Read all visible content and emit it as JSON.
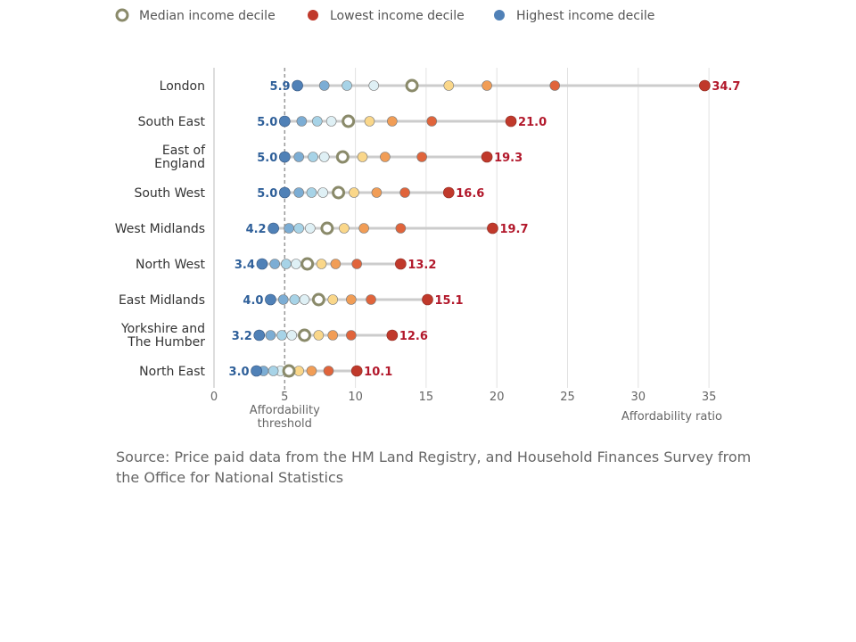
{
  "chart_data": {
    "type": "dot",
    "xlabel": "Affordability ratio",
    "threshold_label_line1": "Affordability",
    "threshold_label_line2": "threshold",
    "threshold": 5,
    "xlim": [
      0,
      35
    ],
    "xticks": [
      0,
      5,
      10,
      15,
      20,
      25,
      30,
      35
    ],
    "legend": [
      {
        "name": "Median income decile",
        "marker": "median"
      },
      {
        "name": "Lowest income decile",
        "marker": "lowest"
      },
      {
        "name": "Highest income decile",
        "marker": "highest"
      }
    ],
    "decile_colors": [
      "#c0392b",
      "#e0643b",
      "#f19d56",
      "#fad78a",
      "#8a8a6a",
      "#dff0f5",
      "#a7d3e7",
      "#7cadd4",
      "#5081b7"
    ],
    "regions": [
      {
        "name": "London",
        "lines": [
          "London"
        ],
        "highest_label": "5.9",
        "lowest_label": "34.7",
        "values": [
          34.7,
          24.1,
          19.3,
          16.6,
          14.0,
          11.3,
          9.4,
          7.8,
          5.9
        ]
      },
      {
        "name": "South East",
        "lines": [
          "South East"
        ],
        "highest_label": "5.0",
        "lowest_label": "21.0",
        "values": [
          21.0,
          15.4,
          12.6,
          11.0,
          9.5,
          8.3,
          7.3,
          6.2,
          5.0
        ]
      },
      {
        "name": "East of England",
        "lines": [
          "East of",
          "England"
        ],
        "highest_label": "5.0",
        "lowest_label": "19.3",
        "values": [
          19.3,
          14.7,
          12.1,
          10.5,
          9.1,
          7.8,
          7.0,
          6.0,
          5.0
        ]
      },
      {
        "name": "South West",
        "lines": [
          "South West"
        ],
        "highest_label": "5.0",
        "lowest_label": "16.6",
        "values": [
          16.6,
          13.5,
          11.5,
          9.9,
          8.8,
          7.7,
          6.9,
          6.0,
          5.0
        ]
      },
      {
        "name": "West Midlands",
        "lines": [
          "West Midlands"
        ],
        "highest_label": "4.2",
        "lowest_label": "19.7",
        "values": [
          19.7,
          13.2,
          10.6,
          9.2,
          8.0,
          6.8,
          6.0,
          5.3,
          4.2
        ]
      },
      {
        "name": "North West",
        "lines": [
          "North West"
        ],
        "highest_label": "3.4",
        "lowest_label": "13.2",
        "values": [
          13.2,
          10.1,
          8.6,
          7.6,
          6.6,
          5.8,
          5.1,
          4.3,
          3.4
        ]
      },
      {
        "name": "East Midlands",
        "lines": [
          "East Midlands"
        ],
        "highest_label": "4.0",
        "lowest_label": "15.1",
        "values": [
          15.1,
          11.1,
          9.7,
          8.4,
          7.4,
          6.4,
          5.7,
          4.9,
          4.0
        ]
      },
      {
        "name": "Yorkshire and The Humber",
        "lines": [
          "Yorkshire and",
          "The Humber"
        ],
        "highest_label": "3.2",
        "lowest_label": "12.6",
        "values": [
          12.6,
          9.7,
          8.4,
          7.4,
          6.4,
          5.5,
          4.8,
          4.0,
          3.2
        ]
      },
      {
        "name": "North East",
        "lines": [
          "North East"
        ],
        "highest_label": "3.0",
        "lowest_label": "10.1",
        "values": [
          10.1,
          8.1,
          6.9,
          6.0,
          5.3,
          4.7,
          4.2,
          3.5,
          3.0
        ]
      }
    ]
  },
  "source": "Source: Price paid data from the HM Land Registry, and Household Finances Survey from the Office for National Statistics"
}
